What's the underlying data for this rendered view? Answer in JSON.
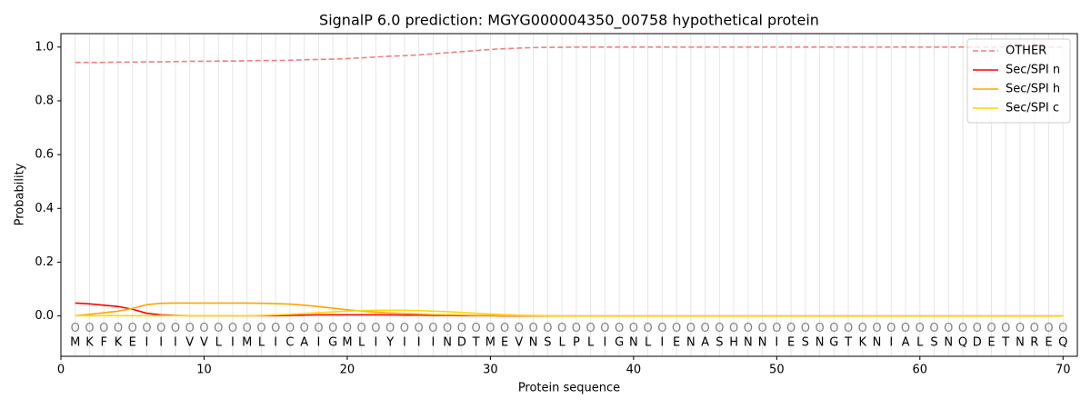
{
  "chart_data": {
    "type": "line",
    "title": "SignalP 6.0 prediction: MGYG000004350_00758 hypothetical protein",
    "xlabel": "Protein sequence",
    "ylabel": "Probability",
    "x": [
      1,
      2,
      3,
      4,
      5,
      6,
      7,
      8,
      9,
      10,
      11,
      12,
      13,
      14,
      15,
      16,
      17,
      18,
      19,
      20,
      21,
      22,
      23,
      24,
      25,
      26,
      27,
      28,
      29,
      30,
      31,
      32,
      33,
      34,
      35,
      36,
      37,
      38,
      39,
      40,
      41,
      42,
      43,
      44,
      45,
      46,
      47,
      48,
      49,
      50,
      51,
      52,
      53,
      54,
      55,
      56,
      57,
      58,
      59,
      60,
      61,
      62,
      63,
      64,
      65,
      66,
      67,
      68,
      69,
      70
    ],
    "residues": [
      "M",
      "K",
      "F",
      "K",
      "E",
      "I",
      "I",
      "I",
      "V",
      "V",
      "L",
      "I",
      "M",
      "L",
      "I",
      "C",
      "A",
      "I",
      "G",
      "M",
      "L",
      "I",
      "Y",
      "I",
      "I",
      "I",
      "N",
      "D",
      "T",
      "M",
      "E",
      "V",
      "N",
      "S",
      "L",
      "P",
      "L",
      "I",
      "G",
      "N",
      "L",
      "I",
      "E",
      "N",
      "A",
      "S",
      "H",
      "N",
      "N",
      "I",
      "E",
      "S",
      "N",
      "G",
      "T",
      "K",
      "N",
      "I",
      "A",
      "L",
      "S",
      "N",
      "Q",
      "D",
      "E",
      "T",
      "N",
      "R",
      "E",
      "Q"
    ],
    "predicted_labels": [
      "O",
      "O",
      "O",
      "O",
      "O",
      "O",
      "O",
      "O",
      "O",
      "O",
      "O",
      "O",
      "O",
      "O",
      "O",
      "O",
      "O",
      "O",
      "O",
      "O",
      "O",
      "O",
      "O",
      "O",
      "O",
      "O",
      "O",
      "O",
      "O",
      "O",
      "O",
      "O",
      "O",
      "O",
      "O",
      "O",
      "O",
      "O",
      "O",
      "O",
      "O",
      "O",
      "O",
      "O",
      "O",
      "O",
      "O",
      "O",
      "O",
      "O",
      "O",
      "O",
      "O",
      "O",
      "O",
      "O",
      "O",
      "O",
      "O",
      "O",
      "O",
      "O",
      "O",
      "O",
      "O",
      "O",
      "O",
      "O",
      "O",
      "O"
    ],
    "series": [
      {
        "name": "OTHER",
        "color": "#f08080",
        "dashed": true,
        "values": [
          0.943,
          0.943,
          0.943,
          0.944,
          0.944,
          0.945,
          0.945,
          0.946,
          0.947,
          0.947,
          0.948,
          0.948,
          0.949,
          0.95,
          0.95,
          0.951,
          0.953,
          0.954,
          0.955,
          0.957,
          0.96,
          0.963,
          0.966,
          0.968,
          0.971,
          0.975,
          0.979,
          0.983,
          0.987,
          0.991,
          0.994,
          0.996,
          0.998,
          0.999,
          0.999,
          1,
          1,
          1,
          1,
          1,
          1,
          1,
          1,
          1,
          1,
          1,
          1,
          1,
          1,
          1,
          1,
          1,
          1,
          1,
          1,
          1,
          1,
          1,
          1,
          1,
          1,
          1,
          1,
          1,
          1,
          1,
          1,
          1,
          1,
          1
        ]
      },
      {
        "name": "Sec/SPI n",
        "color": "#ff0000",
        "dashed": false,
        "values": [
          0.048,
          0.045,
          0.04,
          0.035,
          0.025,
          0.01,
          0.004,
          0.002,
          0.001,
          0.001,
          0.001,
          0.001,
          0.001,
          0.001,
          0.001,
          0.002,
          0.003,
          0.004,
          0.004,
          0.004,
          0.004,
          0.004,
          0.004,
          0.003,
          0.003,
          0.002,
          0.002,
          0.001,
          0.001,
          0.001,
          0,
          0,
          0,
          0,
          0,
          0,
          0,
          0,
          0,
          0,
          0,
          0,
          0,
          0,
          0,
          0,
          0,
          0,
          0,
          0,
          0,
          0,
          0,
          0,
          0,
          0,
          0,
          0,
          0,
          0,
          0,
          0,
          0,
          0,
          0,
          0,
          0,
          0,
          0,
          0
        ]
      },
      {
        "name": "Sec/SPI h",
        "color": "#ffa500",
        "dashed": false,
        "values": [
          0.001,
          0.006,
          0.012,
          0.018,
          0.028,
          0.042,
          0.047,
          0.048,
          0.048,
          0.048,
          0.048,
          0.048,
          0.048,
          0.047,
          0.046,
          0.044,
          0.04,
          0.035,
          0.029,
          0.023,
          0.018,
          0.014,
          0.011,
          0.009,
          0.007,
          0.005,
          0.004,
          0.003,
          0.002,
          0.002,
          0.001,
          0.001,
          0,
          0,
          0,
          0,
          0,
          0,
          0,
          0,
          0,
          0,
          0,
          0,
          0,
          0,
          0,
          0,
          0,
          0,
          0,
          0,
          0,
          0,
          0,
          0,
          0,
          0,
          0,
          0,
          0,
          0,
          0,
          0,
          0,
          0,
          0,
          0,
          0,
          0
        ]
      },
      {
        "name": "Sec/SPI c",
        "color": "#ffd700",
        "dashed": false,
        "values": [
          0.001,
          0.001,
          0.001,
          0.001,
          0.001,
          0.001,
          0.001,
          0.001,
          0.001,
          0.001,
          0.001,
          0.001,
          0.001,
          0.002,
          0.004,
          0.006,
          0.009,
          0.012,
          0.015,
          0.018,
          0.02,
          0.021,
          0.021,
          0.021,
          0.02,
          0.018,
          0.016,
          0.013,
          0.01,
          0.007,
          0.005,
          0.003,
          0.002,
          0.001,
          0,
          0,
          0,
          0,
          0,
          0,
          0,
          0,
          0,
          0,
          0,
          0,
          0,
          0,
          0,
          0,
          0,
          0,
          0,
          0,
          0,
          0,
          0,
          0,
          0,
          0,
          0,
          0,
          0,
          0,
          0,
          0,
          0,
          0,
          0,
          0
        ]
      }
    ],
    "xlim": [
      0,
      71
    ],
    "xticks": [
      0,
      10,
      20,
      30,
      40,
      50,
      60,
      70
    ],
    "ylim": [
      -0.15,
      1.05
    ],
    "yticks": [
      {
        "value": 0,
        "label": "0.0"
      },
      0.2,
      0.4,
      0.6,
      0.8,
      {
        "value": 1,
        "label": "1.0"
      }
    ],
    "grid": true,
    "legend": "upper right"
  }
}
